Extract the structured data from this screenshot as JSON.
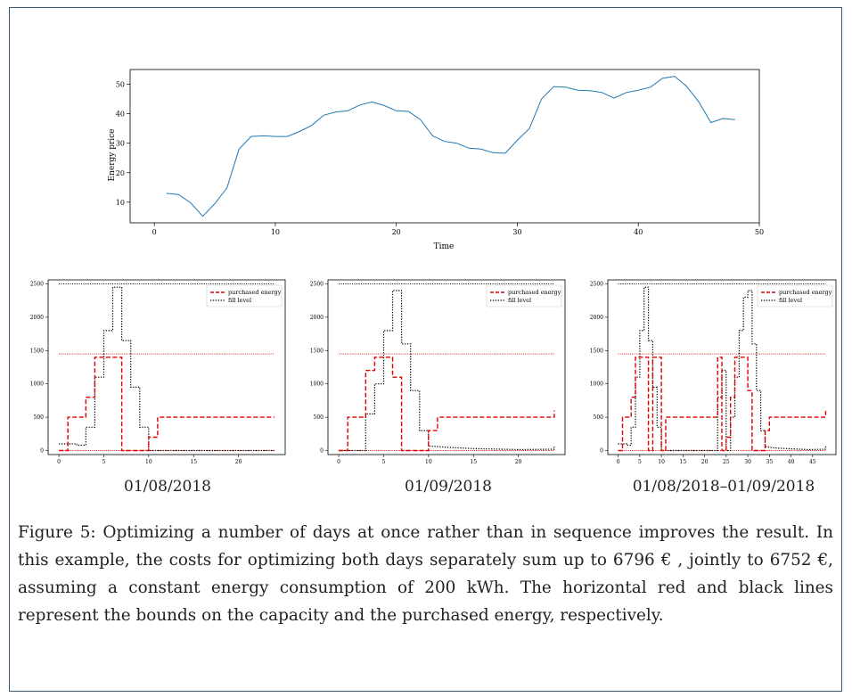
{
  "figure": {
    "caption": "Figure 5: Optimizing a number of days at once rather than in sequence improves the result. In this example, the costs for optimizing both days separately sum up to 6796 € , jointly to 6752 €, assuming a constant energy consumption of 200 kWh. The horizontal red and black lines represent the bounds on the capacity and the purchased energy, respectively."
  },
  "colors": {
    "price_line": "#1f77b4",
    "purchased": "#e00000",
    "fill": "#000000",
    "bound_red": "#e00000"
  },
  "chart_data": [
    {
      "type": "line",
      "title": "",
      "xlabel": "Time",
      "ylabel": "Energy price",
      "xlim": [
        -2,
        50
      ],
      "ylim": [
        3,
        55
      ],
      "xticks": [
        "0",
        "10",
        "20",
        "30",
        "40",
        "50"
      ],
      "yticks": [
        "10",
        "20",
        "30",
        "40",
        "50"
      ],
      "series": [
        {
          "x": [
            1,
            2,
            3,
            4,
            5,
            6,
            7,
            8,
            9,
            10,
            11,
            12,
            13,
            14,
            15,
            16,
            17,
            18,
            19,
            20,
            21,
            22,
            23,
            24,
            25,
            26,
            27,
            28,
            29,
            30,
            31,
            32,
            33,
            34,
            35,
            36,
            37,
            38,
            39,
            40,
            41,
            42,
            43,
            44,
            45,
            46,
            47,
            48
          ],
          "values": [
            13,
            12.6,
            9.8,
            5.2,
            9.5,
            14.8,
            28,
            32.3,
            32.5,
            32.3,
            32.3,
            34,
            36,
            39.5,
            40.6,
            41,
            43,
            44,
            42.8,
            41,
            40.8,
            38,
            32.5,
            30.6,
            30,
            28.3,
            28,
            26.8,
            26.6,
            31,
            35,
            45,
            49.2,
            49,
            48,
            47.8,
            47.2,
            45.3,
            47.2,
            48,
            49,
            52,
            52.7,
            49.3,
            44,
            37,
            38.4,
            38
          ]
        }
      ]
    },
    {
      "type": "line",
      "caption": "01/08/2018",
      "xlim": [
        -1.2,
        25.2
      ],
      "ylim": [
        -60,
        2560
      ],
      "xticks": [
        "0",
        "5",
        "10",
        "15",
        "20"
      ],
      "yticks": [
        "0",
        "500",
        "1000",
        "1500",
        "2000",
        "2500"
      ],
      "legend": "top-right",
      "bounds": {
        "capacity_upper": 1450,
        "capacity_lower": 0,
        "fill_upper": 2500
      },
      "series": [
        {
          "name": "purchased energy",
          "style": "dashed",
          "x": [
            0,
            1,
            1,
            3,
            3,
            4,
            4,
            7,
            7,
            10,
            10,
            11,
            11,
            24
          ],
          "values": [
            0,
            0,
            500,
            500,
            800,
            800,
            1400,
            1400,
            0,
            0,
            200,
            200,
            500,
            500
          ]
        },
        {
          "name": "fill level",
          "style": "dotted",
          "x": [
            0,
            2,
            2,
            3,
            3,
            4,
            4,
            5,
            5,
            6,
            6,
            7,
            7,
            8,
            8,
            9,
            9,
            10,
            10,
            24
          ],
          "values": [
            100,
            100,
            80,
            80,
            350,
            350,
            1100,
            1100,
            1800,
            1800,
            2450,
            2450,
            1650,
            1650,
            950,
            950,
            350,
            350,
            0,
            0
          ]
        }
      ]
    },
    {
      "type": "line",
      "caption": "01/09/2018",
      "xlim": [
        -1.2,
        25.2
      ],
      "ylim": [
        -60,
        2560
      ],
      "xticks": [
        "0",
        "5",
        "10",
        "15",
        "20"
      ],
      "yticks": [
        "0",
        "500",
        "1000",
        "1500",
        "2000",
        "2500"
      ],
      "legend": "top-right",
      "bounds": {
        "capacity_upper": 1450,
        "capacity_lower": 0,
        "fill_upper": 2500
      },
      "series": [
        {
          "name": "purchased energy",
          "style": "dashed",
          "x": [
            0,
            1,
            1,
            3,
            3,
            4,
            4,
            6,
            6,
            7,
            7,
            10,
            10,
            11,
            11,
            24,
            24
          ],
          "values": [
            0,
            0,
            500,
            500,
            1200,
            1200,
            1400,
            1400,
            1100,
            1100,
            0,
            0,
            300,
            300,
            500,
            500,
            600
          ]
        },
        {
          "name": "fill level",
          "style": "dotted",
          "x": [
            0,
            2,
            2,
            3,
            3,
            4,
            4,
            5,
            5,
            6,
            6,
            7,
            7,
            8,
            8,
            9,
            9,
            10,
            10,
            12,
            15,
            20,
            24,
            24
          ],
          "values": [
            0,
            0,
            0,
            0,
            550,
            550,
            1000,
            1000,
            1800,
            1800,
            2400,
            2400,
            1600,
            1600,
            900,
            900,
            300,
            300,
            70,
            50,
            30,
            15,
            20,
            80
          ]
        }
      ]
    },
    {
      "type": "line",
      "caption": "01/08/2018–01/09/2018",
      "xlim": [
        -2.4,
        50.4
      ],
      "ylim": [
        -60,
        2560
      ],
      "xticks": [
        "0",
        "5",
        "10",
        "15",
        "20",
        "25",
        "30",
        "35",
        "40",
        "45"
      ],
      "yticks": [
        "0",
        "500",
        "1000",
        "1500",
        "2000",
        "2500"
      ],
      "legend": "top-right",
      "bounds": {
        "capacity_upper": 1450,
        "capacity_lower": 0,
        "fill_upper": 2500
      },
      "series": [
        {
          "name": "purchased energy",
          "style": "dashed",
          "x": [
            0,
            1,
            1,
            3,
            3,
            4,
            4,
            5,
            5,
            7,
            7,
            8,
            8,
            10,
            10,
            11,
            11,
            23,
            23,
            24,
            24,
            25,
            25,
            26,
            26,
            27,
            27,
            29,
            29,
            30,
            30,
            31,
            31,
            34,
            34,
            35,
            35,
            48,
            48
          ],
          "values": [
            0,
            0,
            500,
            500,
            800,
            800,
            1400,
            1400,
            1400,
            1400,
            0,
            0,
            1400,
            1400,
            0,
            0,
            500,
            500,
            1400,
            1400,
            0,
            0,
            200,
            200,
            800,
            800,
            1400,
            1400,
            1400,
            1400,
            900,
            900,
            0,
            0,
            300,
            300,
            500,
            500,
            600
          ]
        },
        {
          "name": "fill level",
          "style": "dotted",
          "x": [
            0,
            2,
            2,
            3,
            3,
            4,
            4,
            5,
            5,
            6,
            6,
            7,
            7,
            8,
            8,
            9,
            9,
            10,
            10,
            23,
            23,
            24,
            24,
            25,
            25,
            26,
            26,
            27,
            27,
            28,
            28,
            29,
            29,
            30,
            30,
            31,
            31,
            32,
            32,
            33,
            33,
            34,
            34,
            36,
            40,
            44,
            48,
            48
          ],
          "values": [
            100,
            100,
            80,
            80,
            350,
            350,
            1100,
            1100,
            1800,
            1800,
            2450,
            2450,
            1650,
            1650,
            950,
            950,
            350,
            350,
            0,
            0,
            800,
            800,
            1200,
            1200,
            0,
            0,
            500,
            500,
            1100,
            1100,
            1800,
            1800,
            2300,
            2300,
            2400,
            2400,
            1600,
            1600,
            900,
            900,
            300,
            300,
            60,
            40,
            25,
            15,
            20,
            80
          ]
        }
      ]
    }
  ]
}
